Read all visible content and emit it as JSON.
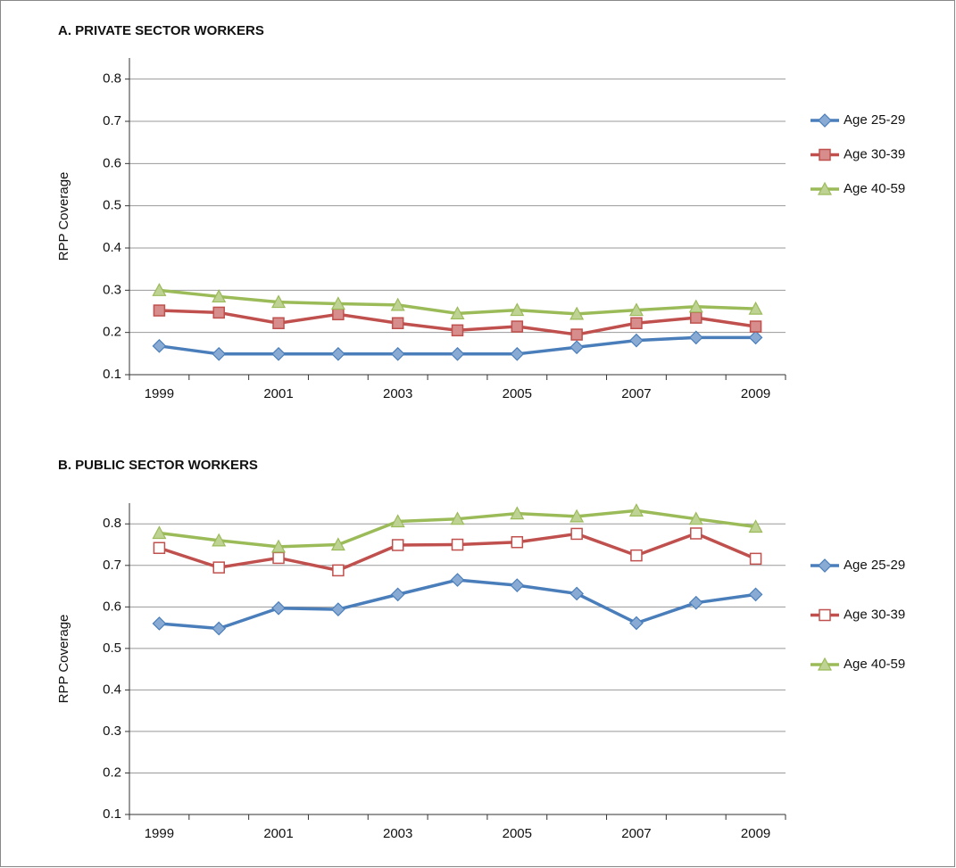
{
  "chart_data": [
    {
      "type": "line",
      "title": "A. PRIVATE SECTOR WORKERS",
      "y_label": "RPP Coverage",
      "categories": [
        "1999",
        null,
        "2001",
        null,
        "2003",
        null,
        "2005",
        null,
        "2007",
        null,
        "2009"
      ],
      "ylim": [
        0.1,
        0.85
      ],
      "yticks": [
        0.1,
        0.2,
        0.3,
        0.4,
        0.5,
        0.6,
        0.7,
        0.8
      ],
      "grid": true,
      "legend": "right",
      "series": [
        {
          "name": "Age 25-29",
          "color": "#4a7ebb",
          "marker": "diamond",
          "values": [
            0.168,
            0.149,
            0.149,
            0.149,
            0.149,
            0.149,
            0.149,
            0.165,
            0.181,
            0.188,
            0.188
          ]
        },
        {
          "name": "Age 30-39",
          "color": "#c0504d",
          "marker": "square",
          "values": [
            0.252,
            0.247,
            0.222,
            0.243,
            0.222,
            0.205,
            0.214,
            0.195,
            0.222,
            0.235,
            0.214
          ]
        },
        {
          "name": "Age 40-59",
          "color": "#9bbb59",
          "marker": "triangle",
          "values": [
            0.3,
            0.285,
            0.272,
            0.268,
            0.265,
            0.245,
            0.253,
            0.244,
            0.253,
            0.261,
            0.256
          ]
        }
      ]
    },
    {
      "type": "line",
      "title": "B. PUBLIC SECTOR WORKERS",
      "y_label": "RPP Coverage",
      "categories": [
        "1999",
        null,
        "2001",
        null,
        "2003",
        null,
        "2005",
        null,
        "2007",
        null,
        "2009"
      ],
      "ylim": [
        0.1,
        0.85
      ],
      "yticks": [
        0.1,
        0.2,
        0.3,
        0.4,
        0.5,
        0.6,
        0.7,
        0.8
      ],
      "grid": true,
      "legend": "right",
      "series": [
        {
          "name": "Age 25-29",
          "color": "#4a7ebb",
          "marker": "diamond",
          "values": [
            0.56,
            0.548,
            0.597,
            0.594,
            0.63,
            0.665,
            0.652,
            0.632,
            0.561,
            0.61,
            0.63
          ]
        },
        {
          "name": "Age 30-39",
          "color": "#c0504d",
          "marker": "square",
          "marker_fill": "#ffffff",
          "values": [
            0.742,
            0.695,
            0.718,
            0.688,
            0.749,
            0.75,
            0.756,
            0.776,
            0.724,
            0.777,
            0.716
          ]
        },
        {
          "name": "Age 40-59",
          "color": "#9bbb59",
          "marker": "triangle",
          "values": [
            0.778,
            0.76,
            0.745,
            0.75,
            0.806,
            0.812,
            0.825,
            0.818,
            0.832,
            0.812,
            0.793
          ]
        }
      ]
    }
  ]
}
